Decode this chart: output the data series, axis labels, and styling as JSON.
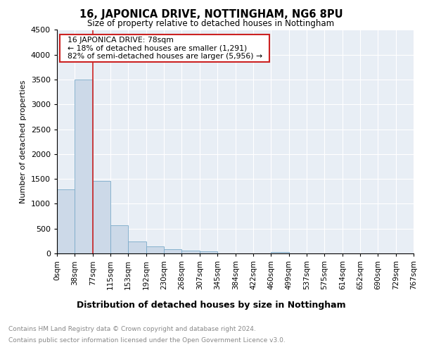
{
  "title": "16, JAPONICA DRIVE, NOTTINGHAM, NG6 8PU",
  "subtitle": "Size of property relative to detached houses in Nottingham",
  "xlabel": "Distribution of detached houses by size in Nottingham",
  "ylabel": "Number of detached properties",
  "annotation_line1": "16 JAPONICA DRIVE: 78sqm",
  "annotation_line2": "← 18% of detached houses are smaller (1,291)",
  "annotation_line3": "82% of semi-detached houses are larger (5,956) →",
  "bar_color": "#ccd9e8",
  "bar_edge_color": "#7aaac8",
  "vline_color": "#cc2222",
  "annotation_box_edge": "#cc2222",
  "background_color": "#e8eef5",
  "ylim": [
    0,
    4500
  ],
  "yticks": [
    0,
    500,
    1000,
    1500,
    2000,
    2500,
    3000,
    3500,
    4000,
    4500
  ],
  "bins": [
    0,
    38,
    77,
    115,
    153,
    192,
    230,
    268,
    307,
    345,
    384,
    422,
    460,
    499,
    537,
    575,
    614,
    652,
    690,
    729,
    767
  ],
  "bin_labels": [
    "0sqm",
    "38sqm",
    "77sqm",
    "115sqm",
    "153sqm",
    "192sqm",
    "230sqm",
    "268sqm",
    "307sqm",
    "345sqm",
    "384sqm",
    "422sqm",
    "460sqm",
    "499sqm",
    "537sqm",
    "575sqm",
    "614sqm",
    "652sqm",
    "690sqm",
    "729sqm",
    "767sqm"
  ],
  "bar_heights": [
    1290,
    3500,
    1460,
    560,
    240,
    140,
    80,
    50,
    40,
    0,
    0,
    0,
    30,
    0,
    0,
    0,
    0,
    0,
    0,
    0
  ],
  "footer_line1": "Contains HM Land Registry data © Crown copyright and database right 2024.",
  "footer_line2": "Contains public sector information licensed under the Open Government Licence v3.0.",
  "vline_x": 77
}
